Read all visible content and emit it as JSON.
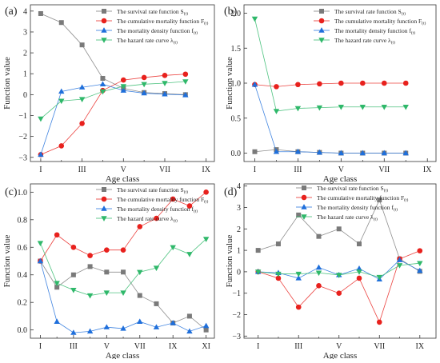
{
  "colors": {
    "survival": "#7a7a7a",
    "cumulative": "#e8211d",
    "density": "#1f6fdb",
    "hazard": "#2fb86a"
  },
  "chart_data": [
    {
      "panel": "(a)",
      "type": "line",
      "x": [
        1,
        2,
        3,
        4,
        5,
        6,
        7,
        8
      ],
      "xlabel": "Age class",
      "ylabel": "Function value",
      "xtick_values": [
        1,
        3,
        5,
        7,
        9
      ],
      "xtick_labels": [
        "I",
        "III",
        "V",
        "VII",
        "IX"
      ],
      "xlim": [
        0.5,
        9.4
      ],
      "ylim": [
        -3.2,
        4.3
      ],
      "yticks": [
        -3,
        -2,
        -1,
        0,
        1,
        2,
        3,
        4
      ],
      "ytick_labels": [
        "−3",
        "−2",
        "−1",
        "0",
        "1",
        "2",
        "3",
        "4"
      ],
      "legend": {
        "position": "top-center",
        "entries": [
          {
            "key": "survival",
            "text": "The survival rate function S",
            "sub": "(t)"
          },
          {
            "key": "cumulative",
            "text": "The cumulative mortality function F",
            "sub": "(t)"
          },
          {
            "key": "density",
            "text": "The mortality density function f",
            "sub": "(t)"
          },
          {
            "key": "hazard",
            "text": "The hazard rate curve λ",
            "sub": "(t)"
          }
        ]
      },
      "series": [
        {
          "key": "survival",
          "marker": "square",
          "values": [
            3.88,
            3.45,
            2.38,
            0.78,
            0.3,
            0.1,
            0.05,
            0.0
          ]
        },
        {
          "key": "cumulative",
          "marker": "circle",
          "values": [
            -2.87,
            -2.45,
            -1.38,
            0.2,
            0.7,
            0.82,
            0.92,
            0.98
          ]
        },
        {
          "key": "density",
          "marker": "triangle-up",
          "values": [
            -2.87,
            0.15,
            0.35,
            0.5,
            0.2,
            0.07,
            0.02,
            -0.02
          ]
        },
        {
          "key": "hazard",
          "marker": "triangle-down",
          "values": [
            -1.15,
            -0.3,
            -0.22,
            0.15,
            0.4,
            0.5,
            0.55,
            0.63
          ]
        }
      ]
    },
    {
      "panel": "(b)",
      "type": "line",
      "x": [
        1,
        2,
        3,
        4,
        5,
        6,
        7,
        8
      ],
      "xlabel": "Age class",
      "ylabel": "Function value",
      "xtick_values": [
        1,
        3,
        5,
        7,
        9
      ],
      "xtick_labels": [
        "I",
        "III",
        "V",
        "VII",
        "IX"
      ],
      "xlim": [
        0.5,
        9.4
      ],
      "ylim": [
        -0.12,
        2.12
      ],
      "yticks": [
        0.0,
        0.5,
        1.0,
        1.5,
        2.0
      ],
      "ytick_labels": [
        "0.0",
        "0.5",
        "1.0",
        "1.5",
        "2.0"
      ],
      "legend": {
        "position": "top-center",
        "entries": [
          {
            "key": "survival",
            "text": "The survival rate function S",
            "sub": "(t)"
          },
          {
            "key": "cumulative",
            "text": "The cumulative mortality function F",
            "sub": "(t)"
          },
          {
            "key": "density",
            "text": "The mortality density function f",
            "sub": "(t)"
          },
          {
            "key": "hazard",
            "text": "The hazard rate curve λ",
            "sub": "(t)"
          }
        ]
      },
      "series": [
        {
          "key": "survival",
          "marker": "square",
          "values": [
            0.02,
            0.05,
            0.02,
            0.01,
            0.0,
            0.0,
            0.0,
            0.0
          ]
        },
        {
          "key": "cumulative",
          "marker": "circle",
          "values": [
            0.98,
            0.95,
            0.98,
            0.99,
            1.0,
            1.0,
            1.0,
            1.0
          ]
        },
        {
          "key": "density",
          "marker": "triangle-up",
          "values": [
            0.98,
            0.02,
            0.02,
            0.01,
            0.0,
            0.0,
            0.0,
            0.0
          ]
        },
        {
          "key": "hazard",
          "marker": "triangle-down",
          "values": [
            1.92,
            0.6,
            0.64,
            0.65,
            0.66,
            0.66,
            0.66,
            0.66
          ]
        }
      ]
    },
    {
      "panel": "(c)",
      "type": "line",
      "x": [
        1,
        2,
        3,
        4,
        5,
        6,
        7,
        8,
        9,
        10,
        11
      ],
      "xlabel": "Age class",
      "ylabel": "Function value",
      "xtick_values": [
        1,
        3,
        5,
        7,
        9,
        11
      ],
      "xtick_labels": [
        "I",
        "III",
        "V",
        "VII",
        "IX",
        "XI"
      ],
      "xlim": [
        0.4,
        11.5
      ],
      "ylim": [
        -0.06,
        1.06
      ],
      "yticks": [
        0.0,
        0.2,
        0.4,
        0.6,
        0.8,
        1.0
      ],
      "ytick_labels": [
        "0.0",
        "0.2",
        "0.4",
        "0.6",
        "0.8",
        "1.0"
      ],
      "legend": {
        "position": "top-center",
        "entries": [
          {
            "key": "survival",
            "text": "The survival rate function S",
            "sub": "(t)"
          },
          {
            "key": "cumulative",
            "text": "The cumulative mortality function F",
            "sub": "(t)"
          },
          {
            "key": "density",
            "text": "The mortality density function f",
            "sub": "(t)"
          },
          {
            "key": "hazard",
            "text": "The hazard rate curve λ",
            "sub": "(t)"
          }
        ]
      },
      "series": [
        {
          "key": "survival",
          "marker": "square",
          "values": [
            0.5,
            0.31,
            0.4,
            0.46,
            0.42,
            0.42,
            0.25,
            0.19,
            0.05,
            0.1,
            0.0
          ]
        },
        {
          "key": "cumulative",
          "marker": "circle",
          "values": [
            0.5,
            0.69,
            0.6,
            0.54,
            0.58,
            0.58,
            0.75,
            0.81,
            0.95,
            0.9,
            1.0
          ]
        },
        {
          "key": "density",
          "marker": "triangle-up",
          "values": [
            0.5,
            0.06,
            -0.02,
            -0.01,
            0.02,
            0.01,
            0.06,
            0.02,
            0.05,
            -0.01,
            0.03
          ]
        },
        {
          "key": "hazard",
          "marker": "triangle-down",
          "values": [
            0.63,
            0.34,
            0.29,
            0.25,
            0.27,
            0.27,
            0.42,
            0.45,
            0.6,
            0.55,
            0.66
          ]
        }
      ]
    },
    {
      "panel": "(d)",
      "type": "line",
      "x": [
        1,
        2,
        3,
        4,
        5,
        6,
        7,
        8,
        9
      ],
      "xlabel": "Age class",
      "ylabel": "Function value",
      "xtick_values": [
        1,
        3,
        5,
        7,
        9
      ],
      "xtick_labels": [
        "I",
        "III",
        "V",
        "VII",
        "IX"
      ],
      "xlim": [
        0.3,
        9.8
      ],
      "ylim": [
        -3.1,
        4.1
      ],
      "yticks": [
        -3,
        -2,
        -1,
        0,
        1,
        2,
        3,
        4
      ],
      "ytick_labels": [
        "−3",
        "−2",
        "−1",
        "0",
        "1",
        "2",
        "3",
        "4"
      ],
      "legend": {
        "position": "top-right",
        "entries": [
          {
            "key": "survival",
            "text": "The survival rate function S",
            "sub": "(t)"
          },
          {
            "key": "cumulative",
            "text": "The cumulative mortality function F",
            "sub": "(t)"
          },
          {
            "key": "density",
            "text": "The mortality density function f",
            "sub": "(t)"
          },
          {
            "key": "hazard",
            "text": "The hazard rate curve λ",
            "sub": "(t)"
          }
        ]
      },
      "series": [
        {
          "key": "survival",
          "marker": "square",
          "values": [
            1.0,
            1.3,
            2.65,
            1.65,
            2.0,
            1.3,
            3.35,
            0.6,
            0.02
          ]
        },
        {
          "key": "cumulative",
          "marker": "circle",
          "values": [
            0.0,
            -0.3,
            -1.65,
            -0.65,
            -1.0,
            -0.3,
            -2.35,
            0.6,
            0.98
          ]
        },
        {
          "key": "density",
          "marker": "triangle-up",
          "values": [
            0.0,
            -0.05,
            -0.3,
            0.2,
            -0.15,
            0.15,
            -0.35,
            0.55,
            0.05
          ]
        },
        {
          "key": "hazard",
          "marker": "triangle-down",
          "values": [
            0.0,
            -0.1,
            -0.1,
            -0.05,
            -0.15,
            0.0,
            -0.25,
            0.3,
            0.4
          ]
        }
      ]
    }
  ]
}
